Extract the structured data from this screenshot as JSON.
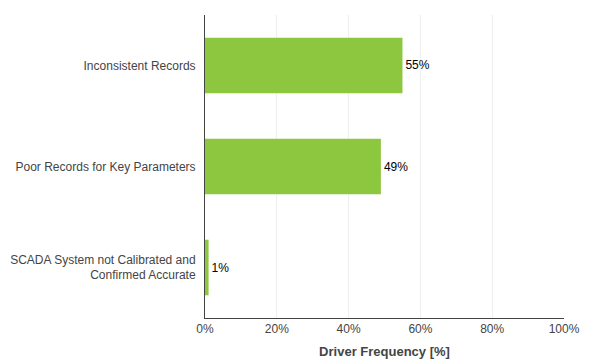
{
  "chart_data": {
    "type": "bar",
    "orientation": "horizontal",
    "categories": [
      "SCADA System not Calibrated and\nConfirmed Accurate",
      "Poor Records for Key Parameters",
      "Inconsistent Records"
    ],
    "values": [
      1,
      49,
      55
    ],
    "value_labels": [
      "1%",
      "49%",
      "55%"
    ],
    "data_labels": true,
    "color": "#8DC63F",
    "xlabel": "Driver Frequency [%]",
    "xlim": [
      0,
      100
    ],
    "xticks": [
      {
        "value": 0,
        "label": "0%"
      },
      {
        "value": 20,
        "label": "20%"
      },
      {
        "value": 40,
        "label": "40%"
      },
      {
        "value": 60,
        "label": "60%"
      },
      {
        "value": 80,
        "label": "80%"
      },
      {
        "value": 100,
        "label": "100%"
      }
    ],
    "grid": true
  }
}
